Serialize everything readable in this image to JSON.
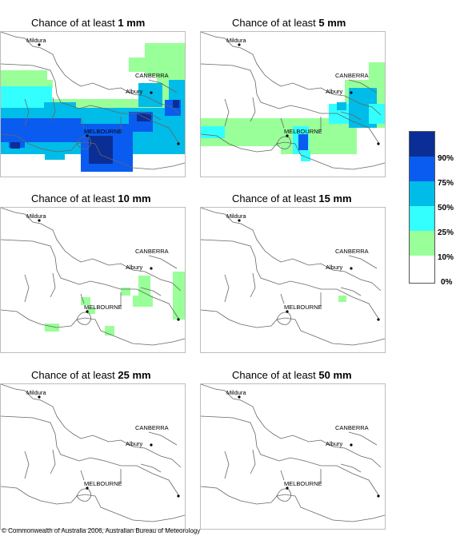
{
  "panels": [
    {
      "prefix": "Chance of at least ",
      "amount": "1 mm"
    },
    {
      "prefix": "Chance of at least ",
      "amount": "5 mm"
    },
    {
      "prefix": "Chance of at least ",
      "amount": "10 mm"
    },
    {
      "prefix": "Chance of at least ",
      "amount": "15 mm"
    },
    {
      "prefix": "Chance of at least ",
      "amount": "25 mm"
    },
    {
      "prefix": "Chance of at least ",
      "amount": "50 mm"
    }
  ],
  "places": {
    "mildura": "Mildura",
    "canberra": "CANBERRA",
    "albury": "Albury",
    "melbourne": "MELBOURNE"
  },
  "legend": {
    "ticks": [
      "90%",
      "75%",
      "50%",
      "25%",
      "10%",
      "0%"
    ],
    "colors": [
      "#0a2e96",
      "#0a5cf0",
      "#00bce8",
      "#33ffff",
      "#99ff99",
      "#ffffff"
    ]
  },
  "copyright": "© Commonwealth of Australia 2006, Australian Bureau of Meteorology"
}
